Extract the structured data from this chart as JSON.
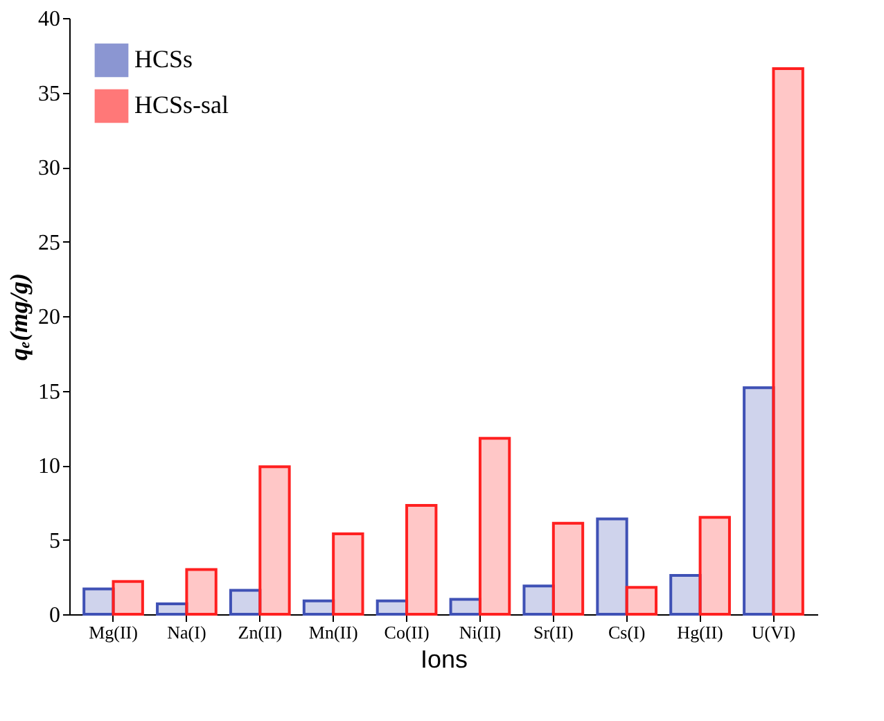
{
  "chart_data": {
    "type": "bar",
    "xlabel": "Ions",
    "ylabel": "qₑ(mg/g)",
    "categories": [
      "Mg(II)",
      "Na(I)",
      "Zn(II)",
      "Mn(II)",
      "Co(II)",
      "Ni(II)",
      "Sr(II)",
      "Cs(I)",
      "Hg(II)",
      "U(VI)"
    ],
    "series": [
      {
        "name": "HCSs",
        "color": "#3f51b5",
        "values": [
          1.7,
          0.7,
          1.6,
          0.9,
          0.9,
          1.0,
          1.9,
          6.4,
          2.6,
          15.2
        ]
      },
      {
        "name": "HCSs-sal",
        "color": "#ff2020",
        "values": [
          2.2,
          3.0,
          9.9,
          5.4,
          7.3,
          11.8,
          6.1,
          1.8,
          6.5,
          36.6
        ]
      }
    ],
    "ylim": [
      0,
      40
    ],
    "yticks": [
      0,
      5,
      10,
      15,
      20,
      25,
      30,
      35,
      40
    ],
    "grid": false,
    "legend": "top left"
  }
}
